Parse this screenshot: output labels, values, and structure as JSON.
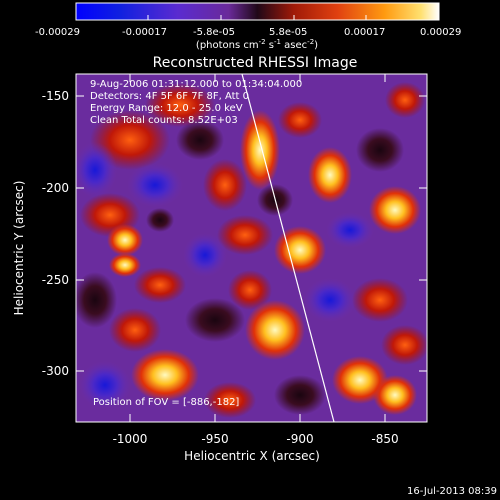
{
  "colorbar": {
    "ticks": [
      "-0.00029",
      "-0.00017",
      "-5.8e-05",
      "5.8e-05",
      "0.00017",
      "0.00029"
    ],
    "unit_prefix": "(photons cm",
    "unit_exp1": "-2",
    "unit_mid1": " s",
    "unit_exp2": "-1",
    "unit_mid2": " asec",
    "unit_exp3": "-2",
    "unit_suffix": ")"
  },
  "plot": {
    "title": "Reconstructed RHESSI Image",
    "xlabel": "Heliocentric X (arcsec)",
    "ylabel": "Heliocentric Y (arcsec)",
    "x_ticks": [
      "-1000",
      "-950",
      "-900",
      "-850"
    ],
    "y_ticks": [
      "-150",
      "-200",
      "-250",
      "-300"
    ],
    "info_lines": [
      "9-Aug-2006 01:31:12.000 to 01:34:04.000",
      "Detectors: 4F 5F 6F 7F 8F, Att 0",
      "Energy Range: 12.0 - 25.0 keV",
      "Clean    Total counts: 8.52E+03"
    ],
    "position_text": "Position of FOV = [-886,-182]"
  },
  "footer": {
    "date": "16-Jul-2013 08:39"
  }
}
